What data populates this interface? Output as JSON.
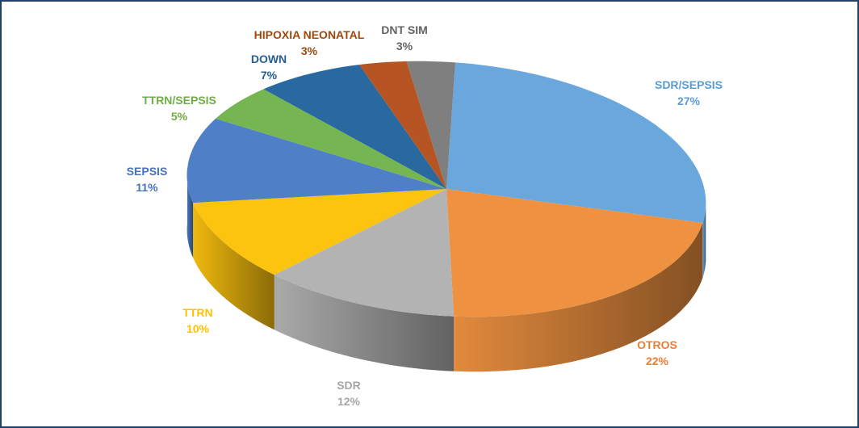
{
  "chart_data": {
    "type": "pie",
    "style": "3d",
    "slices": [
      {
        "name": "SDR/SEPSIS",
        "label": "27%",
        "value": 27,
        "color": "#6aa7dc"
      },
      {
        "name": "OTROS",
        "label": "22%",
        "value": 22,
        "color": "#ee9140"
      },
      {
        "name": "SDR",
        "label": "12%",
        "value": 12,
        "color": "#b3b3b3"
      },
      {
        "name": "TTRN",
        "label": "10%",
        "value": 10,
        "color": "#fcc30f"
      },
      {
        "name": "SEPSIS",
        "label": "11%",
        "value": 11,
        "color": "#4e7fc7"
      },
      {
        "name": "TTRN/SEPSIS",
        "label": "5%",
        "value": 5,
        "color": "#75b653"
      },
      {
        "name": "DOWN",
        "label": "7%",
        "value": 7,
        "color": "#2a69a0"
      },
      {
        "name": "HIPOXIA NEONATAL",
        "label": "3%",
        "value": 3,
        "color": "#b65424"
      },
      {
        "name": "DNT SIM",
        "label": "3%",
        "value": 3,
        "color": "#7f7f7f"
      }
    ],
    "label_colors": {
      "SDR/SEPSIS": "#5b9bd5",
      "OTROS": "#ed7d31",
      "SDR": "#a5a5a5",
      "TTRN": "#ffc000",
      "SEPSIS": "#4472c4",
      "TTRN/SEPSIS": "#70ad47",
      "DOWN": "#255e91",
      "HIPOXIA NEONATAL": "#9e480e",
      "DNT SIM": "#636363"
    }
  }
}
